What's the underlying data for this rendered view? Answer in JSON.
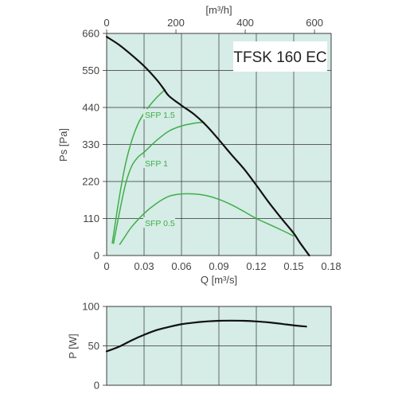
{
  "chart_data": [
    {
      "type": "line",
      "title": "TFSK 160 EC",
      "xlabel": "Q [m³/s]",
      "ylabel": "Ps [Pa]",
      "x2label": "[m³/h]",
      "xlim": [
        0,
        0.18
      ],
      "ylim": [
        0,
        660
      ],
      "x2lim": [
        0,
        648
      ],
      "x_ticks": [
        "0",
        "0.03",
        "0.06",
        "0.09",
        "0.12",
        "0.15",
        "0.18"
      ],
      "y_ticks": [
        "0",
        "110",
        "220",
        "330",
        "440",
        "550",
        "660"
      ],
      "x2_ticks": [
        "0",
        "200",
        "400",
        "600"
      ],
      "grid": true,
      "background": "#d6ece6",
      "series": [
        {
          "name": "",
          "color": "#111111",
          "points": [
            [
              0,
              650
            ],
            [
              0.01,
              626
            ],
            [
              0.02,
              596
            ],
            [
              0.03,
              563
            ],
            [
              0.04,
              523
            ],
            [
              0.045,
              499
            ],
            [
              0.05,
              474
            ],
            [
              0.06,
              446
            ],
            [
              0.07,
              420
            ],
            [
              0.08,
              386
            ],
            [
              0.09,
              344
            ],
            [
              0.1,
              300
            ],
            [
              0.11,
              258
            ],
            [
              0.12,
              209
            ],
            [
              0.13,
              158
            ],
            [
              0.14,
              111
            ],
            [
              0.15,
              66
            ],
            [
              0.155,
              38
            ],
            [
              0.1625,
              0
            ]
          ]
        },
        {
          "name": "SFP 1.5",
          "color": "#3fae49",
          "points": [
            [
              0.0045,
              37
            ],
            [
              0.01,
              170
            ],
            [
              0.015,
              270
            ],
            [
              0.02,
              340
            ],
            [
              0.025,
              390
            ],
            [
              0.03,
              423
            ],
            [
              0.035,
              448
            ],
            [
              0.04,
              469
            ],
            [
              0.045,
              487
            ],
            [
              0.047,
              492
            ]
          ]
        },
        {
          "name": "SFP 1",
          "color": "#3fae49",
          "points": [
            [
              0.0055,
              36
            ],
            [
              0.01,
              123
            ],
            [
              0.015,
              210
            ],
            [
              0.02,
              265
            ],
            [
              0.025,
              292
            ],
            [
              0.03,
              307
            ],
            [
              0.04,
              342
            ],
            [
              0.05,
              370
            ],
            [
              0.06,
              385
            ],
            [
              0.07,
              393
            ],
            [
              0.078,
              396
            ]
          ]
        },
        {
          "name": "SFP 0.5",
          "color": "#3fae49",
          "points": [
            [
              0.0105,
              33
            ],
            [
              0.015,
              58
            ],
            [
              0.02,
              85
            ],
            [
              0.03,
              125
            ],
            [
              0.04,
              155
            ],
            [
              0.05,
              176
            ],
            [
              0.06,
              183
            ],
            [
              0.07,
              183
            ],
            [
              0.08,
              178
            ],
            [
              0.09,
              167
            ],
            [
              0.1,
              151
            ],
            [
              0.11,
              131
            ],
            [
              0.12,
              110
            ],
            [
              0.13,
              93
            ],
            [
              0.14,
              76
            ],
            [
              0.15,
              58
            ]
          ]
        }
      ],
      "series_labels": {
        "sfp15": "SFP 1.5",
        "sfp1": "SFP 1",
        "sfp05": "SFP 0.5"
      }
    },
    {
      "type": "line",
      "xlabel": "",
      "ylabel": "P [W]",
      "xlim": [
        0,
        0.18
      ],
      "ylim": [
        0,
        100
      ],
      "y_ticks": [
        "0",
        "50",
        "100"
      ],
      "grid": true,
      "background": "#d6ece6",
      "series": [
        {
          "name": "",
          "color": "#111111",
          "points": [
            [
              0,
              43
            ],
            [
              0.01,
              49
            ],
            [
              0.02,
              57
            ],
            [
              0.03,
              64
            ],
            [
              0.04,
              70
            ],
            [
              0.05,
              74
            ],
            [
              0.06,
              77.5
            ],
            [
              0.07,
              79.5
            ],
            [
              0.08,
              81
            ],
            [
              0.09,
              81.8
            ],
            [
              0.1,
              82
            ],
            [
              0.11,
              81.8
            ],
            [
              0.12,
              81
            ],
            [
              0.13,
              79.8
            ],
            [
              0.14,
              78
            ],
            [
              0.15,
              76
            ],
            [
              0.16,
              74.5
            ]
          ]
        }
      ]
    }
  ]
}
